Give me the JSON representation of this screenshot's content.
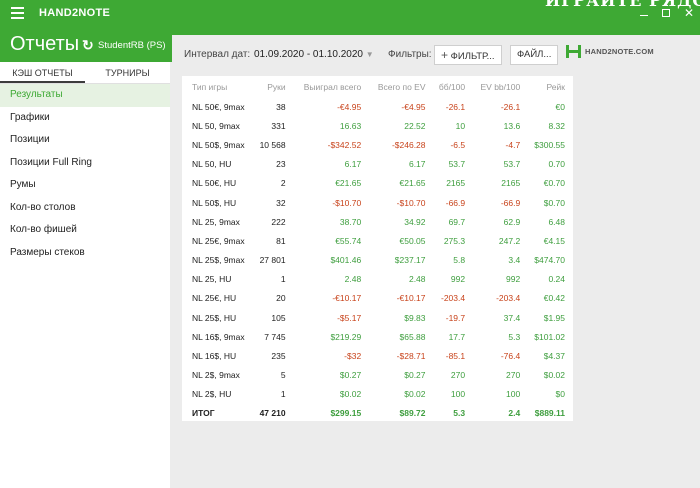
{
  "topbar": {
    "app_name": "HAND2NOTE",
    "overlay_text": "ИГРАЙТЕ РЯДОМ"
  },
  "header": {
    "title": "Отчеты",
    "account": "StudentRB (PS)"
  },
  "sidebar": {
    "tabs": [
      {
        "label": "КЭШ ОТЧЕТЫ",
        "active": true
      },
      {
        "label": "ТУРНИРЫ",
        "active": false
      }
    ],
    "items": [
      {
        "label": "Результаты",
        "active": true
      },
      {
        "label": "Графики"
      },
      {
        "label": "Позиции"
      },
      {
        "label": "Позиции Full Ring"
      },
      {
        "label": "Румы"
      },
      {
        "label": "Кол-во столов"
      },
      {
        "label": "Кол-во фишей"
      },
      {
        "label": "Размеры стеков"
      }
    ]
  },
  "toolbar": {
    "date_label": "Интервал дат:",
    "date_range": "01.09.2020 - 01.10.2020",
    "filters_label": "Фильтры:",
    "filter_button": "ФИЛЬТР...",
    "file_button": "ФАЙЛ...",
    "logo_text": "HAND2NOTE.COM"
  },
  "table": {
    "columns": [
      "Тип игры",
      "Руки",
      "Выиграл всего",
      "Всего по EV",
      "бб/100",
      "EV bb/100",
      "Рейк"
    ],
    "rows": [
      [
        "NL 50€, 9max",
        "38",
        "-€4.95",
        "-€4.95",
        "-26.1",
        "-26.1",
        "€0"
      ],
      [
        "NL 50, 9max",
        "331",
        "16.63",
        "22.52",
        "10",
        "13.6",
        "8.32"
      ],
      [
        "NL 50$, 9max",
        "10 568",
        "-$342.52",
        "-$246.28",
        "-6.5",
        "-4.7",
        "$300.55"
      ],
      [
        "NL 50, HU",
        "23",
        "6.17",
        "6.17",
        "53.7",
        "53.7",
        "0.70"
      ],
      [
        "NL 50€, HU",
        "2",
        "€21.65",
        "€21.65",
        "2165",
        "2165",
        "€0.70"
      ],
      [
        "NL 50$, HU",
        "32",
        "-$10.70",
        "-$10.70",
        "-66.9",
        "-66.9",
        "$0.70"
      ],
      [
        "NL 25, 9max",
        "222",
        "38.70",
        "34.92",
        "69.7",
        "62.9",
        "6.48"
      ],
      [
        "NL 25€, 9max",
        "81",
        "€55.74",
        "€50.05",
        "275.3",
        "247.2",
        "€4.15"
      ],
      [
        "NL 25$, 9max",
        "27 801",
        "$401.46",
        "$237.17",
        "5.8",
        "3.4",
        "$474.70"
      ],
      [
        "NL 25, HU",
        "1",
        "2.48",
        "2.48",
        "992",
        "992",
        "0.24"
      ],
      [
        "NL 25€, HU",
        "20",
        "-€10.17",
        "-€10.17",
        "-203.4",
        "-203.4",
        "€0.42"
      ],
      [
        "NL 25$, HU",
        "105",
        "-$5.17",
        "$9.83",
        "-19.7",
        "37.4",
        "$1.95"
      ],
      [
        "NL 16$, 9max",
        "7 745",
        "$219.29",
        "$65.88",
        "17.7",
        "5.3",
        "$101.02"
      ],
      [
        "NL 16$, HU",
        "235",
        "-$32",
        "-$28.71",
        "-85.1",
        "-76.4",
        "$4.37"
      ],
      [
        "NL 2$, 9max",
        "5",
        "$0.27",
        "$0.27",
        "270",
        "270",
        "$0.02"
      ],
      [
        "NL 2$, HU",
        "1",
        "$0.02",
        "$0.02",
        "100",
        "100",
        "$0"
      ]
    ],
    "total": [
      "ИТОГ",
      "47 210",
      "$299.15",
      "$89.72",
      "5.3",
      "2.4",
      "$889.11"
    ]
  },
  "colors": {
    "brand_green": "#3ea934",
    "positive": "#3e9e3e",
    "negative": "#c8431b"
  }
}
